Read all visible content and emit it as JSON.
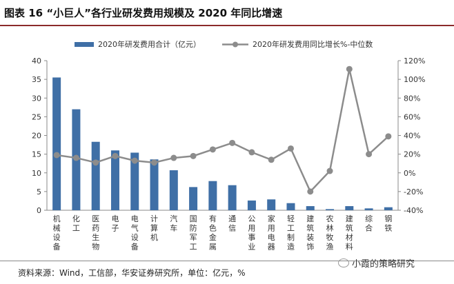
{
  "figure": {
    "title": "图表 16 “小巨人”各行业研发费用规模及 2020 年同比增速",
    "source": "资料来源：Wind，工信部，华安证券研究所，单位：亿元，%",
    "watermark": "小霞的策略研究"
  },
  "chart_data": {
    "type": "bar+line",
    "categories": [
      "机械设备",
      "化工",
      "医药生物",
      "电子",
      "电气设备",
      "计算机",
      "汽车",
      "国防军工",
      "有色金属",
      "通信",
      "公用事业",
      "家用电器",
      "轻工制造",
      "建筑装饰",
      "农林牧渔",
      "建筑材料",
      "综合",
      "钢铁"
    ],
    "series": [
      {
        "name": "2020年研发费用合计（亿元）",
        "type": "bar",
        "axis": "left",
        "color": "#3f6fa6",
        "values": [
          35.5,
          27,
          18.3,
          16,
          15.4,
          13.6,
          10.7,
          6.2,
          7.8,
          6.7,
          2.6,
          2.9,
          1.9,
          1.1,
          0.3,
          1.1,
          0.5,
          0.8
        ]
      },
      {
        "name": "2020年研发费用同比增长%-中位数",
        "type": "line",
        "axis": "right",
        "color": "#8c8c8c",
        "values": [
          19,
          16,
          11,
          18,
          13,
          11,
          16,
          18,
          25,
          32,
          22,
          14,
          26,
          -20,
          2,
          111,
          20,
          39
        ]
      }
    ],
    "y_left": {
      "min": 0,
      "max": 40,
      "step": 5,
      "ticks": [
        "0",
        "5",
        "10",
        "15",
        "20",
        "25",
        "30",
        "35",
        "40"
      ]
    },
    "y_right": {
      "min": -40,
      "max": 120,
      "step": 20,
      "ticks": [
        "-40%",
        "-20%",
        "0%",
        "20%",
        "40%",
        "60%",
        "80%",
        "100%",
        "120%"
      ]
    },
    "legend_position": "top"
  }
}
